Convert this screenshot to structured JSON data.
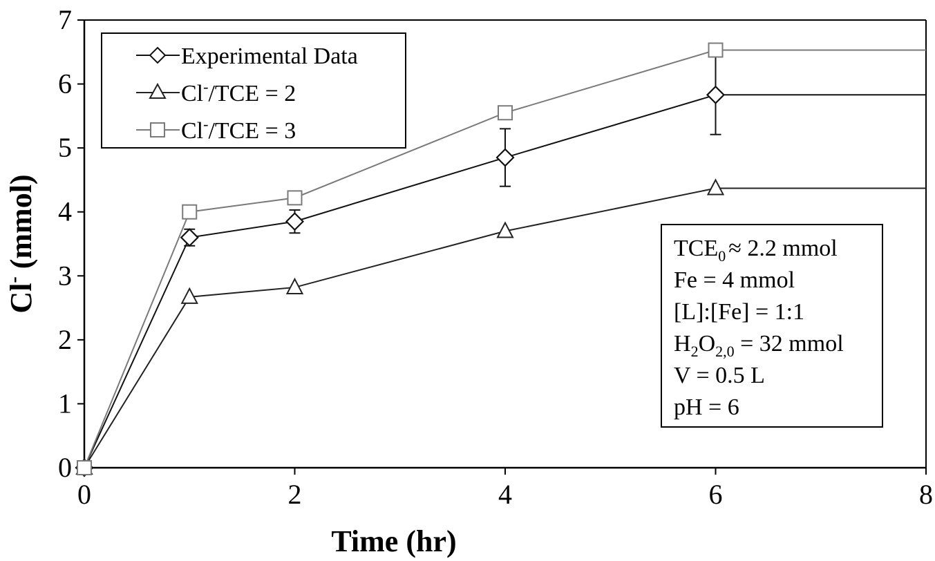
{
  "chart_data": {
    "type": "line",
    "xlabel": "Time (hr)",
    "ylabel": "Cl",
    "ylabel_superscript": "-",
    "ylabel_unit": " (mmol)",
    "xlim": [
      0,
      8
    ],
    "ylim": [
      0,
      7
    ],
    "xticks": [
      "0",
      "2",
      "4",
      "6",
      "8"
    ],
    "yticks": [
      "0",
      "1",
      "2",
      "3",
      "4",
      "5",
      "6",
      "7"
    ],
    "grid": false,
    "legend_position": "top-left",
    "series": [
      {
        "name": "Experimental Data",
        "marker": "diamond",
        "color": "#111111",
        "x": [
          0,
          1,
          2,
          4,
          6
        ],
        "y": [
          0,
          3.6,
          3.85,
          4.85,
          5.83
        ],
        "error": [
          0,
          0.13,
          0.18,
          0.45,
          0.62
        ],
        "line_extends_to_x": 8
      },
      {
        "name": "Cl⁻/TCE = 2",
        "marker": "triangle",
        "color": "#222222",
        "x": [
          0,
          1,
          2,
          4,
          6
        ],
        "y": [
          0,
          2.67,
          2.82,
          3.7,
          4.37
        ],
        "line_extends_to_x": 8
      },
      {
        "name": "Cl⁻/TCE = 3",
        "marker": "square",
        "color": "#7a7a7a",
        "x": [
          0,
          1,
          2,
          4,
          6
        ],
        "y": [
          0,
          4.0,
          4.22,
          5.55,
          6.53
        ],
        "line_extends_to_x": 8
      }
    ],
    "legend_entries": {
      "experimental": "Experimental Data",
      "ratio2_prefix": "Cl",
      "ratio2_sup": "-",
      "ratio2_suffix": "/TCE = 2",
      "ratio3_prefix": "Cl",
      "ratio3_sup": "-",
      "ratio3_suffix": "/TCE = 3"
    },
    "conditions": {
      "tce0": {
        "base": "TCE",
        "sub": "0",
        "rest": "≈ 2.2 mmol"
      },
      "fe": "Fe = 4 mmol",
      "ratio": "[L]:[Fe] = 1:1",
      "h2o2": {
        "p1": "H",
        "s1": "2",
        "p2": "O",
        "s2": "2,0",
        "rest": " = 32 mmol"
      },
      "volume": "V = 0.5 L",
      "ph": "pH = 6"
    }
  }
}
